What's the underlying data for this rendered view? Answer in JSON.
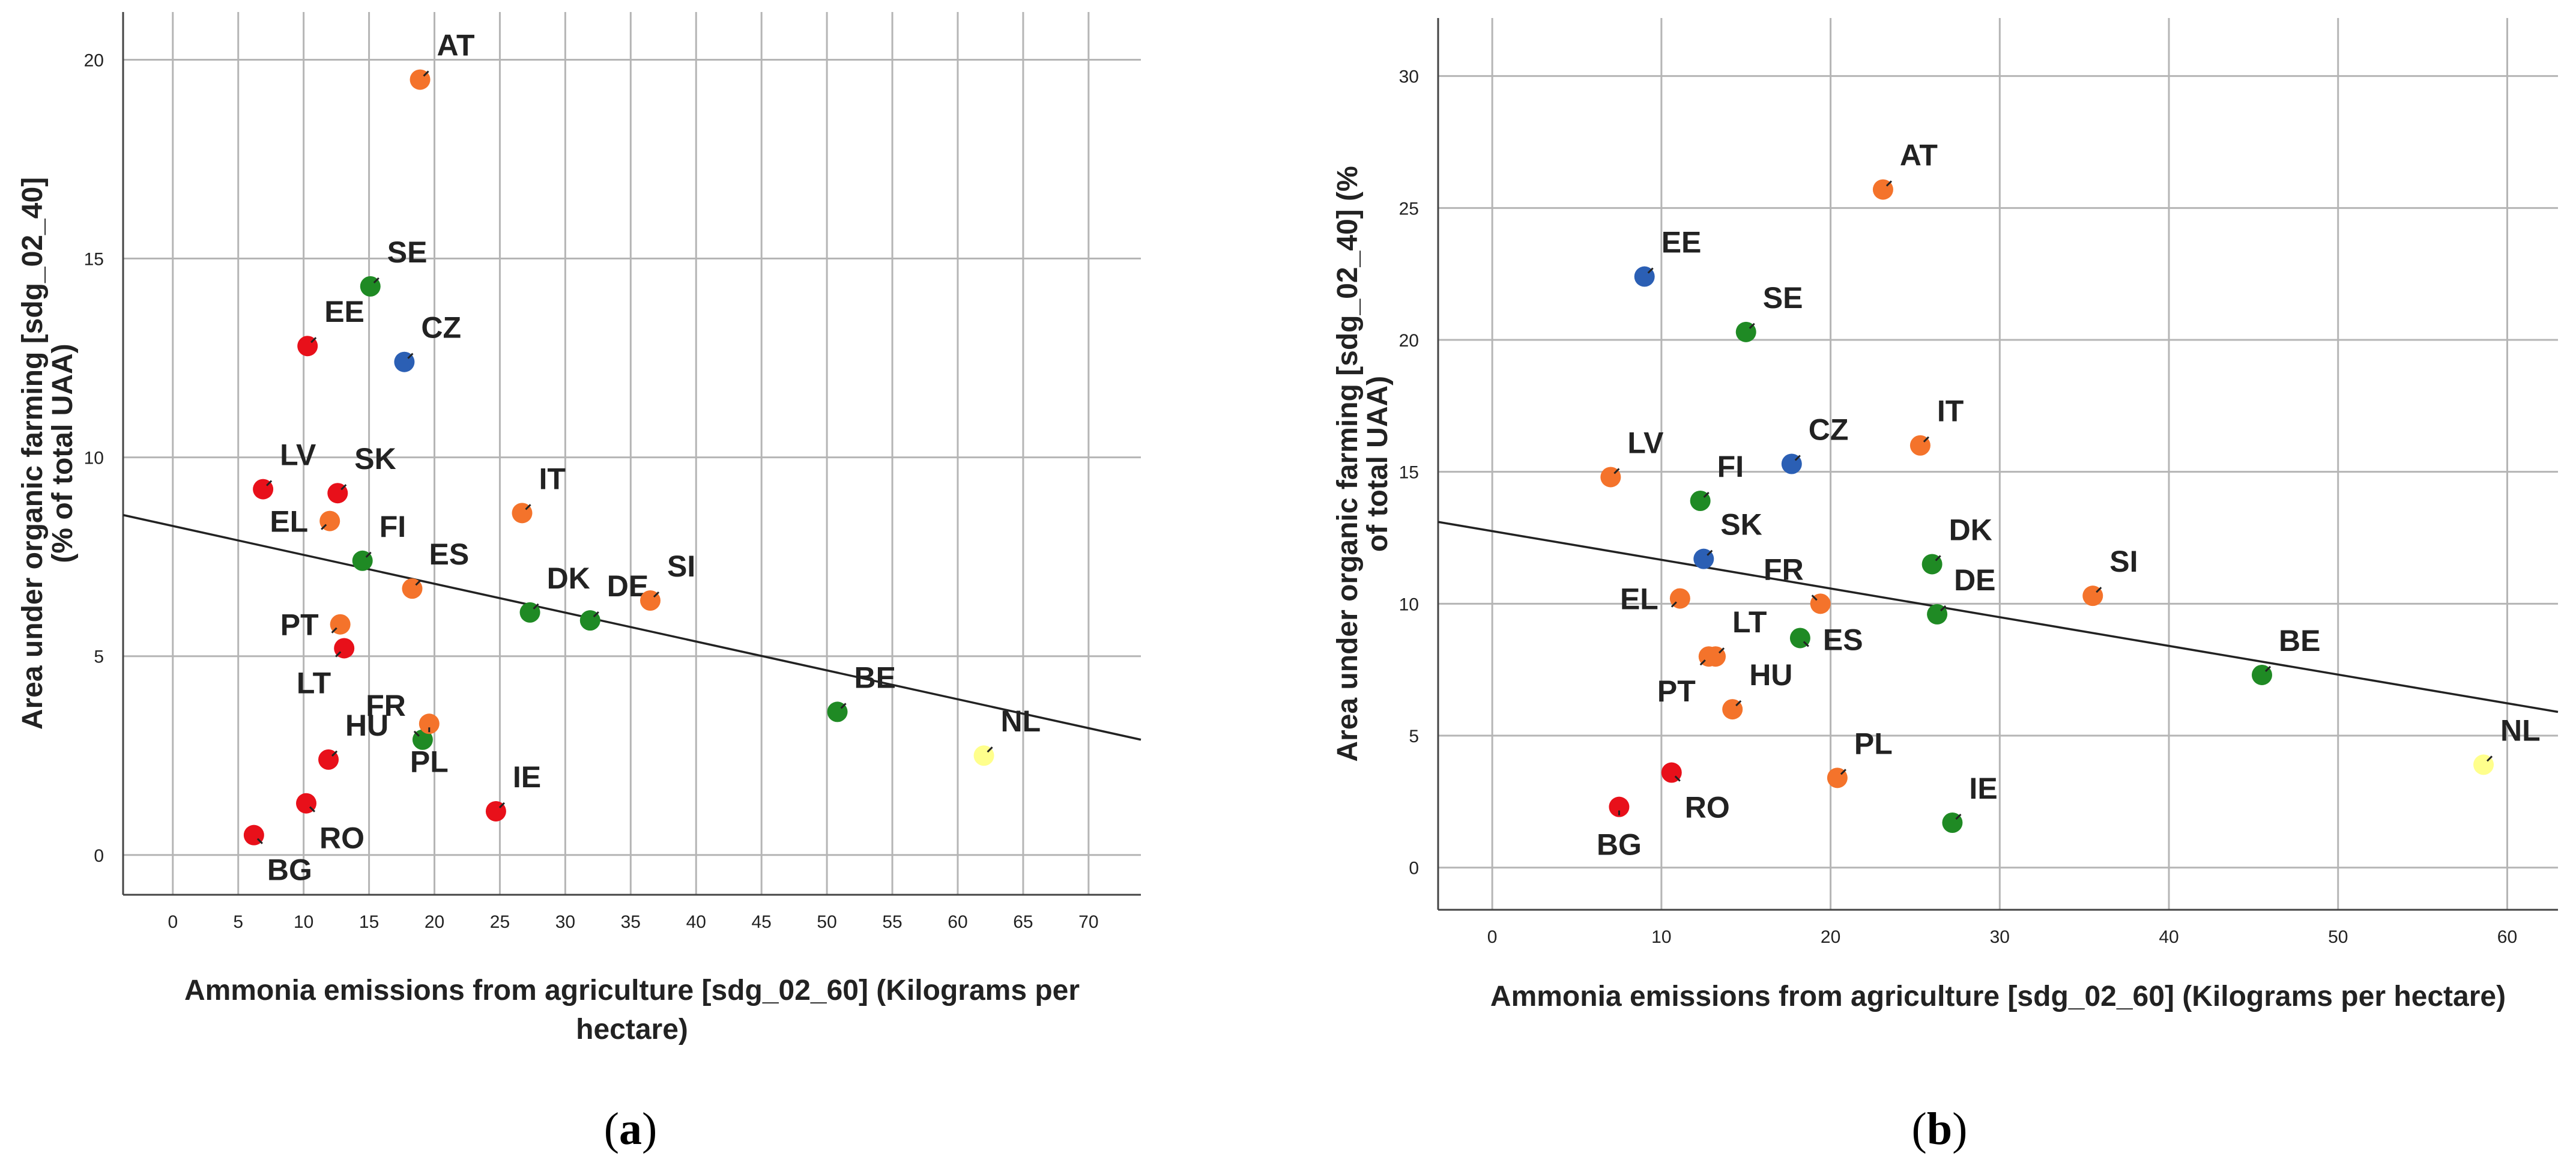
{
  "chart_data": [
    {
      "type": "scatter",
      "panel": "a",
      "caption": "(a)",
      "caption_letter": "a",
      "xlabel": "Ammonia emissions from agriculture [sdg_02_60] (Kilograms per hectare)",
      "xlabel_lines": [
        "Ammonia emissions from agriculture [sdg_02_60] (Kilograms per",
        "hectare)"
      ],
      "ylabel": "Area under organic farming [sdg_02_40] (% of total UAA)",
      "ylabel_lines": [
        "Area under organic farming [sdg_02_40]",
        "(% of total UAA)"
      ],
      "xlim": [
        -3.8,
        74
      ],
      "ylim": [
        -1,
        21.2
      ],
      "xticks": [
        0,
        5,
        10,
        15,
        20,
        25,
        30,
        35,
        40,
        45,
        50,
        55,
        60,
        65,
        70
      ],
      "yticks": [
        0,
        5,
        10,
        15,
        20
      ],
      "grid": true,
      "fit_line": {
        "x": [
          -3.8,
          74
        ],
        "y": [
          8.55,
          2.9
        ]
      },
      "points": [
        {
          "label": "AT",
          "x": 18.9,
          "y": 19.5,
          "color": "#f4732b",
          "label_pos": "ne"
        },
        {
          "label": "SE",
          "x": 15.1,
          "y": 14.3,
          "color": "#1f8a24",
          "label_pos": "ne"
        },
        {
          "label": "EE",
          "x": 10.3,
          "y": 12.8,
          "color": "#e8101a",
          "label_pos": "ne"
        },
        {
          "label": "CZ",
          "x": 17.7,
          "y": 12.4,
          "color": "#2b5fb4",
          "label_pos": "ne"
        },
        {
          "label": "LV",
          "x": 6.9,
          "y": 9.2,
          "color": "#e8101a",
          "label_pos": "ne"
        },
        {
          "label": "SK",
          "x": 12.6,
          "y": 9.1,
          "color": "#e8101a",
          "label_pos": "ne"
        },
        {
          "label": "IT",
          "x": 26.7,
          "y": 8.6,
          "color": "#f4732b",
          "label_pos": "ne"
        },
        {
          "label": "EL",
          "x": 12.0,
          "y": 8.4,
          "color": "#f4732b",
          "label_pos": "w"
        },
        {
          "label": "FI",
          "x": 14.5,
          "y": 7.4,
          "color": "#1f8a24",
          "label_pos": "ne"
        },
        {
          "label": "ES",
          "x": 18.3,
          "y": 6.7,
          "color": "#f4732b",
          "label_pos": "ne"
        },
        {
          "label": "DK",
          "x": 27.3,
          "y": 6.1,
          "color": "#1f8a24",
          "label_pos": "ne"
        },
        {
          "label": "DE",
          "x": 31.9,
          "y": 5.9,
          "color": "#1f8a24",
          "label_pos": "ne"
        },
        {
          "label": "SI",
          "x": 36.5,
          "y": 6.4,
          "color": "#f4732b",
          "label_pos": "ne"
        },
        {
          "label": "PT",
          "x": 12.8,
          "y": 5.8,
          "color": "#f4732b",
          "label_pos": "w"
        },
        {
          "label": "LT",
          "x": 13.1,
          "y": 5.2,
          "color": "#e8101a",
          "label_pos": "sw"
        },
        {
          "label": "BE",
          "x": 50.8,
          "y": 3.6,
          "color": "#1f8a24",
          "label_pos": "ne"
        },
        {
          "label": "FR",
          "x": 19.1,
          "y": 2.9,
          "color": "#1f8a24",
          "label_pos": "nw"
        },
        {
          "label": "PL",
          "x": 19.6,
          "y": 3.3,
          "color": "#f4732b",
          "label_pos": "s"
        },
        {
          "label": "NL",
          "x": 62.0,
          "y": 2.5,
          "color": "#ffff8c",
          "label_pos": "ne"
        },
        {
          "label": "HU",
          "x": 11.9,
          "y": 2.4,
          "color": "#e8101a",
          "label_pos": "ne"
        },
        {
          "label": "IE",
          "x": 24.7,
          "y": 1.1,
          "color": "#e8101a",
          "label_pos": "ne"
        },
        {
          "label": "RO",
          "x": 10.2,
          "y": 1.3,
          "color": "#e8101a",
          "label_pos": "se"
        },
        {
          "label": "BG",
          "x": 6.2,
          "y": 0.5,
          "color": "#e8101a",
          "label_pos": "se"
        }
      ]
    },
    {
      "type": "scatter",
      "panel": "b",
      "caption": "(b)",
      "caption_letter": "b",
      "xlabel": "Ammonia emissions from agriculture [sdg_02_60] (Kilograms per hectare)",
      "xlabel_lines": [
        "Ammonia emissions from agriculture [sdg_02_60] (Kilograms per hectare)"
      ],
      "ylabel": "Area under organic farming [sdg_02_40] (% of total UAA)",
      "ylabel_lines": [
        "Area under organic farming [sdg_02_40] (%",
        "of total UAA)"
      ],
      "xlim": [
        -3.2,
        63
      ],
      "ylim": [
        -1.6,
        32.2
      ],
      "xticks": [
        0,
        10,
        20,
        30,
        40,
        50,
        60
      ],
      "yticks": [
        0,
        5,
        10,
        15,
        20,
        25,
        30
      ],
      "grid": true,
      "fit_line": {
        "x": [
          -3.2,
          63
        ],
        "y": [
          13.1,
          5.9
        ]
      },
      "points": [
        {
          "label": "AT",
          "x": 23.1,
          "y": 25.7,
          "color": "#f4732b",
          "label_pos": "ne"
        },
        {
          "label": "EE",
          "x": 9.0,
          "y": 22.4,
          "color": "#2b5fb4",
          "label_pos": "ne"
        },
        {
          "label": "SE",
          "x": 15.0,
          "y": 20.3,
          "color": "#1f8a24",
          "label_pos": "ne"
        },
        {
          "label": "IT",
          "x": 25.3,
          "y": 16.0,
          "color": "#f4732b",
          "label_pos": "ne"
        },
        {
          "label": "CZ",
          "x": 17.7,
          "y": 15.3,
          "color": "#2b5fb4",
          "label_pos": "ne"
        },
        {
          "label": "LV",
          "x": 7.0,
          "y": 14.8,
          "color": "#f4732b",
          "label_pos": "ne"
        },
        {
          "label": "FI",
          "x": 12.3,
          "y": 13.9,
          "color": "#1f8a24",
          "label_pos": "ne"
        },
        {
          "label": "SK",
          "x": 12.5,
          "y": 11.7,
          "color": "#2b5fb4",
          "label_pos": "ne"
        },
        {
          "label": "DK",
          "x": 26.0,
          "y": 11.5,
          "color": "#1f8a24",
          "label_pos": "ne"
        },
        {
          "label": "SI",
          "x": 35.5,
          "y": 10.3,
          "color": "#f4732b",
          "label_pos": "ne"
        },
        {
          "label": "EL",
          "x": 11.1,
          "y": 10.2,
          "color": "#f4732b",
          "label_pos": "w"
        },
        {
          "label": "FR",
          "x": 19.4,
          "y": 10.0,
          "color": "#f4732b",
          "label_pos": "nw"
        },
        {
          "label": "DE",
          "x": 26.3,
          "y": 9.6,
          "color": "#1f8a24",
          "label_pos": "ne"
        },
        {
          "label": "ES",
          "x": 18.2,
          "y": 8.7,
          "color": "#1f8a24",
          "label_pos": "e"
        },
        {
          "label": "LT",
          "x": 13.2,
          "y": 8.0,
          "color": "#f4732b",
          "label_pos": "ne"
        },
        {
          "label": "BE",
          "x": 45.5,
          "y": 7.3,
          "color": "#1f8a24",
          "label_pos": "ne"
        },
        {
          "label": "HU",
          "x": 14.2,
          "y": 6.0,
          "color": "#f4732b",
          "label_pos": "ne"
        },
        {
          "label": "PT",
          "x": 12.8,
          "y": 8.0,
          "color": "#f4732b",
          "label_pos": "sw"
        },
        {
          "label": "NL",
          "x": 58.6,
          "y": 3.9,
          "color": "#ffff8c",
          "label_pos": "ne"
        },
        {
          "label": "RO",
          "x": 10.6,
          "y": 3.6,
          "color": "#e8101a",
          "label_pos": "se"
        },
        {
          "label": "PL",
          "x": 20.4,
          "y": 3.4,
          "color": "#f4732b",
          "label_pos": "ne"
        },
        {
          "label": "BG",
          "x": 7.5,
          "y": 2.3,
          "color": "#e8101a",
          "label_pos": "s"
        },
        {
          "label": "IE",
          "x": 27.2,
          "y": 1.7,
          "color": "#1f8a24",
          "label_pos": "ne"
        }
      ]
    }
  ]
}
